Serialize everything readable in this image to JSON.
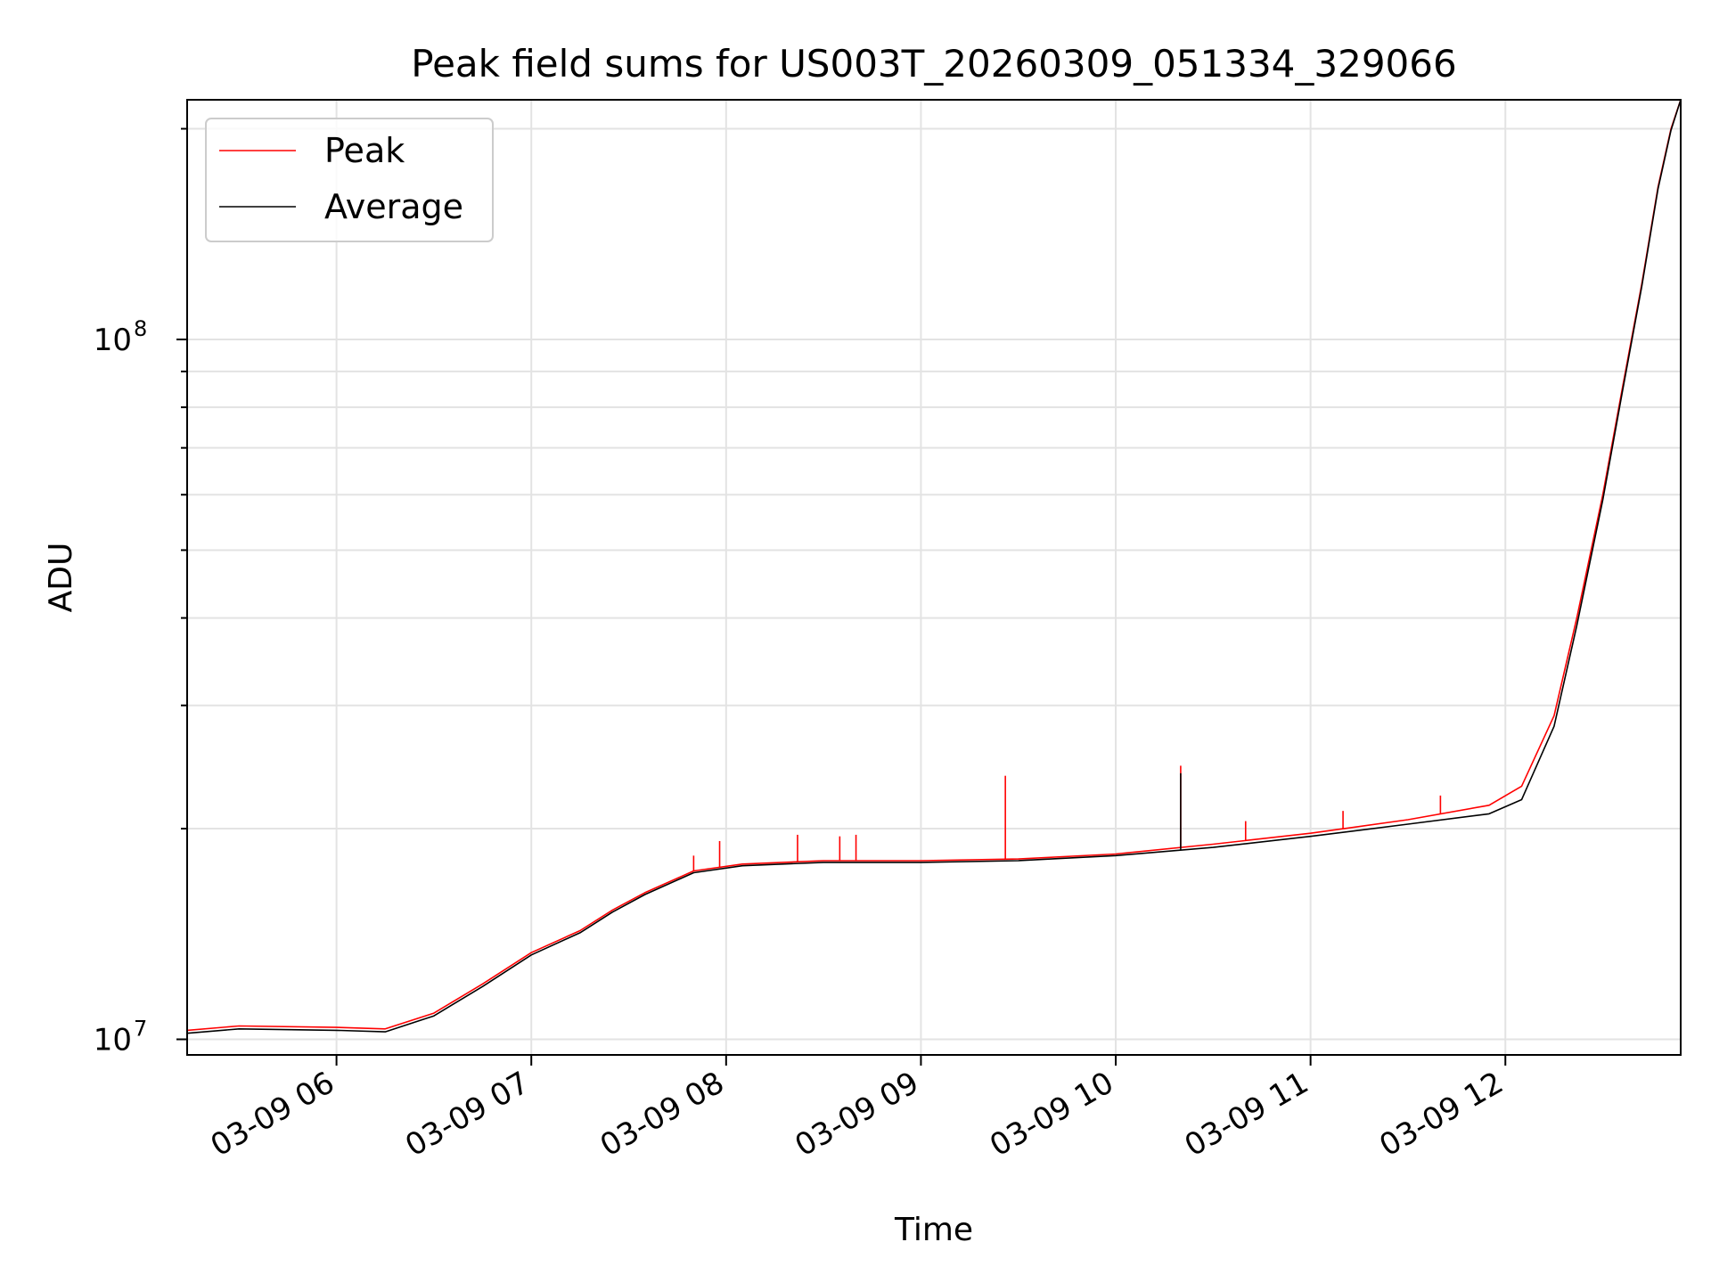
{
  "chart_data": {
    "type": "line",
    "title": "Peak field sums for US003T_20260309_051334_329066",
    "xlabel": "Time",
    "ylabel": "ADU",
    "yscale": "log",
    "ylim": [
      9500000,
      220000000
    ],
    "xlim": [
      "2026-03-09 05:14",
      "2026-03-09 12:54"
    ],
    "x_ticks": [
      {
        "value": "2026-03-09 06:00",
        "label": "03-09 06"
      },
      {
        "value": "2026-03-09 07:00",
        "label": "03-09 07"
      },
      {
        "value": "2026-03-09 08:00",
        "label": "03-09 08"
      },
      {
        "value": "2026-03-09 09:00",
        "label": "03-09 09"
      },
      {
        "value": "2026-03-09 10:00",
        "label": "03-09 10"
      },
      {
        "value": "2026-03-09 11:00",
        "label": "03-09 11"
      },
      {
        "value": "2026-03-09 12:00",
        "label": "03-09 12"
      }
    ],
    "y_ticks": [
      {
        "value": 10000000,
        "base": "10",
        "exp": "7"
      },
      {
        "value": 100000000,
        "base": "10",
        "exp": "8"
      }
    ],
    "grid": true,
    "legend": "upper-left",
    "series": [
      {
        "name": "Peak",
        "color": "#ff0000",
        "x": [
          "2026-03-09 05:14",
          "2026-03-09 05:30",
          "2026-03-09 06:00",
          "2026-03-09 06:15",
          "2026-03-09 06:30",
          "2026-03-09 06:45",
          "2026-03-09 07:00",
          "2026-03-09 07:15",
          "2026-03-09 07:25",
          "2026-03-09 07:35",
          "2026-03-09 07:50",
          "2026-03-09 08:05",
          "2026-03-09 08:30",
          "2026-03-09 09:00",
          "2026-03-09 09:30",
          "2026-03-09 10:00",
          "2026-03-09 10:30",
          "2026-03-09 11:00",
          "2026-03-09 11:30",
          "2026-03-09 11:55",
          "2026-03-09 12:05",
          "2026-03-09 12:15",
          "2026-03-09 12:22",
          "2026-03-09 12:30",
          "2026-03-09 12:36",
          "2026-03-09 12:42",
          "2026-03-09 12:47",
          "2026-03-09 12:51",
          "2026-03-09 12:54"
        ],
        "values": [
          10300000,
          10450000,
          10400000,
          10350000,
          10900000,
          12000000,
          13300000,
          14300000,
          15300000,
          16200000,
          17400000,
          17800000,
          18000000,
          18000000,
          18100000,
          18400000,
          19000000,
          19700000,
          20600000,
          21600000,
          23000000,
          29000000,
          40000000,
          60000000,
          85000000,
          120000000,
          165000000,
          200000000,
          220000000
        ],
        "spikes": [
          {
            "x": "2026-03-09 07:50",
            "value": 18300000
          },
          {
            "x": "2026-03-09 07:58",
            "value": 19200000
          },
          {
            "x": "2026-03-09 08:22",
            "value": 19600000
          },
          {
            "x": "2026-03-09 08:35",
            "value": 19500000
          },
          {
            "x": "2026-03-09 08:40",
            "value": 19600000
          },
          {
            "x": "2026-03-09 09:26",
            "value": 23800000
          },
          {
            "x": "2026-03-09 10:20",
            "value": 24600000
          },
          {
            "x": "2026-03-09 10:40",
            "value": 20500000
          },
          {
            "x": "2026-03-09 11:10",
            "value": 21200000
          },
          {
            "x": "2026-03-09 11:40",
            "value": 22300000
          }
        ]
      },
      {
        "name": "Average",
        "color": "#000000",
        "x": [
          "2026-03-09 05:14",
          "2026-03-09 05:30",
          "2026-03-09 06:00",
          "2026-03-09 06:15",
          "2026-03-09 06:30",
          "2026-03-09 06:45",
          "2026-03-09 07:00",
          "2026-03-09 07:15",
          "2026-03-09 07:25",
          "2026-03-09 07:35",
          "2026-03-09 07:50",
          "2026-03-09 08:05",
          "2026-03-09 08:30",
          "2026-03-09 09:00",
          "2026-03-09 09:30",
          "2026-03-09 10:00",
          "2026-03-09 10:30",
          "2026-03-09 11:00",
          "2026-03-09 11:30",
          "2026-03-09 11:55",
          "2026-03-09 12:05",
          "2026-03-09 12:15",
          "2026-03-09 12:22",
          "2026-03-09 12:30",
          "2026-03-09 12:36",
          "2026-03-09 12:42",
          "2026-03-09 12:47",
          "2026-03-09 12:51",
          "2026-03-09 12:54"
        ],
        "values": [
          10200000,
          10350000,
          10300000,
          10250000,
          10800000,
          11900000,
          13200000,
          14200000,
          15200000,
          16100000,
          17300000,
          17700000,
          17900000,
          17900000,
          18000000,
          18300000,
          18800000,
          19500000,
          20300000,
          21000000,
          22000000,
          28000000,
          39000000,
          59000000,
          84000000,
          119000000,
          164000000,
          199000000,
          220000000
        ],
        "spikes": [
          {
            "x": "2026-03-09 10:20",
            "value": 24000000
          }
        ]
      }
    ]
  }
}
